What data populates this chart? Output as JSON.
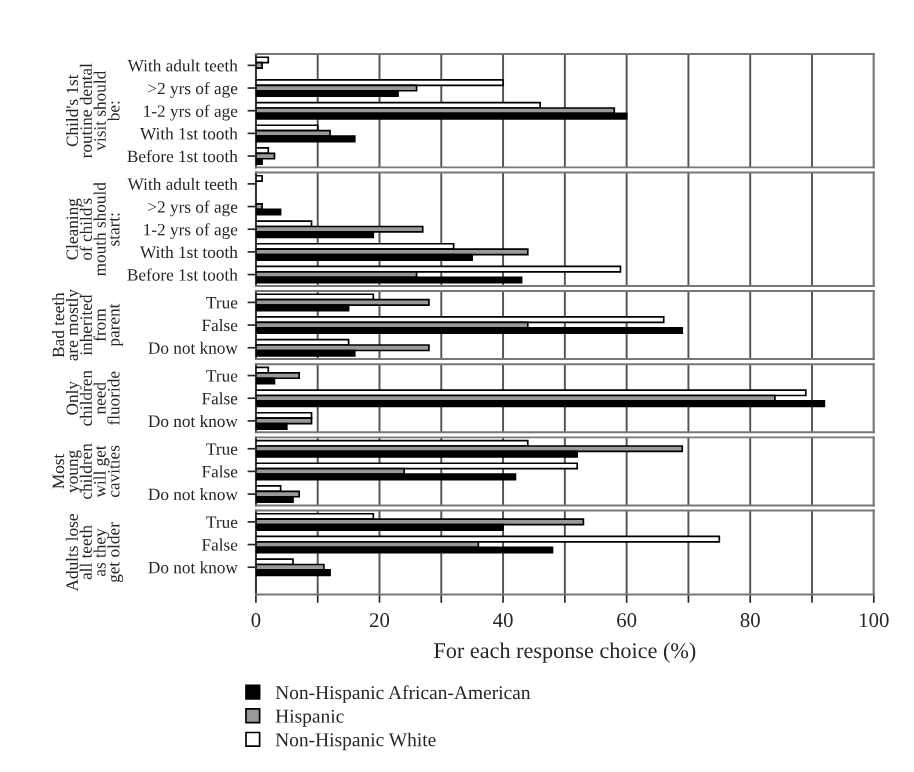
{
  "chart_data": [
    {
      "type": "bar",
      "orientation": "horizontal",
      "ylabel": "Child's 1st\nroutine dental\nvisit should\nbe:",
      "categories": [
        "With adult teeth",
        ">2 yrs of age",
        "1-2 yrs of age",
        "With 1st tooth",
        "Before 1st tooth"
      ],
      "xlim": [
        0,
        100
      ],
      "xticks": [
        0,
        {
          "value": 10,
          "label": null
        },
        20,
        {
          "value": 30,
          "label": null
        },
        40,
        {
          "value": 50,
          "label": null
        },
        60,
        {
          "value": 70,
          "label": null
        },
        80,
        {
          "value": 90,
          "label": null
        },
        100
      ],
      "tick_labels": "y",
      "grid": "x",
      "legend": false,
      "series": [
        {
          "color": "#ffffff",
          "values": [
            2,
            40,
            46,
            10,
            2
          ]
        },
        {
          "color": "#999999",
          "values": [
            1,
            26,
            58,
            12,
            3
          ]
        },
        {
          "color": "#000000",
          "values": [
            0,
            23,
            60,
            16,
            1
          ]
        }
      ]
    },
    {
      "type": "bar",
      "orientation": "horizontal",
      "ylabel": "Cleaning\nof child's\nmouth should\nstart:",
      "categories": [
        "With adult teeth",
        ">2 yrs of age",
        "1-2 yrs of age",
        "With 1st tooth",
        "Before 1st tooth"
      ],
      "xlim": [
        0,
        100
      ],
      "xticks": [
        0,
        {
          "value": 10,
          "label": null
        },
        20,
        {
          "value": 30,
          "label": null
        },
        40,
        {
          "value": 50,
          "label": null
        },
        60,
        {
          "value": 70,
          "label": null
        },
        80,
        {
          "value": 90,
          "label": null
        },
        100
      ],
      "tick_labels": "y",
      "grid": "x",
      "legend": false,
      "series": [
        {
          "color": "#ffffff",
          "values": [
            1,
            0,
            9,
            32,
            59
          ]
        },
        {
          "color": "#999999",
          "values": [
            0,
            1,
            27,
            44,
            26
          ]
        },
        {
          "color": "#000000",
          "values": [
            0,
            4,
            19,
            35,
            43
          ]
        }
      ]
    },
    {
      "type": "bar",
      "orientation": "horizontal",
      "ylabel": "Bad teeth\nare mostly\ninherited\nfrom\nparent",
      "categories": [
        "True",
        "False",
        "Do not know"
      ],
      "xlim": [
        0,
        100
      ],
      "xticks": [
        0,
        {
          "value": 10,
          "label": null
        },
        20,
        {
          "value": 30,
          "label": null
        },
        40,
        {
          "value": 50,
          "label": null
        },
        60,
        {
          "value": 70,
          "label": null
        },
        80,
        {
          "value": 90,
          "label": null
        },
        100
      ],
      "tick_labels": "y",
      "grid": "x",
      "legend": false,
      "series": [
        {
          "color": "#ffffff",
          "values": [
            19,
            66,
            15
          ]
        },
        {
          "color": "#999999",
          "values": [
            28,
            44,
            28
          ]
        },
        {
          "color": "#000000",
          "values": [
            15,
            69,
            16
          ]
        }
      ]
    },
    {
      "type": "bar",
      "orientation": "horizontal",
      "ylabel": "Only\nchildren\nneed\nfluoride",
      "categories": [
        "True",
        "False",
        "Do not know"
      ],
      "xlim": [
        0,
        100
      ],
      "xticks": [
        0,
        {
          "value": 10,
          "label": null
        },
        20,
        {
          "value": 30,
          "label": null
        },
        40,
        {
          "value": 50,
          "label": null
        },
        60,
        {
          "value": 70,
          "label": null
        },
        80,
        {
          "value": 90,
          "label": null
        },
        100
      ],
      "tick_labels": "y",
      "grid": "x",
      "legend": false,
      "series": [
        {
          "color": "#ffffff",
          "values": [
            2,
            89,
            9
          ]
        },
        {
          "color": "#999999",
          "values": [
            7,
            84,
            9
          ]
        },
        {
          "color": "#000000",
          "values": [
            3,
            92,
            5
          ]
        }
      ]
    },
    {
      "type": "bar",
      "orientation": "horizontal",
      "ylabel": "Most\nyoung\nchildren\nwill get\ncavities",
      "categories": [
        "True",
        "False",
        "Do not know"
      ],
      "xlim": [
        0,
        100
      ],
      "xticks": [
        0,
        {
          "value": 10,
          "label": null
        },
        20,
        {
          "value": 30,
          "label": null
        },
        40,
        {
          "value": 50,
          "label": null
        },
        60,
        {
          "value": 70,
          "label": null
        },
        80,
        {
          "value": 90,
          "label": null
        },
        100
      ],
      "tick_labels": "y",
      "grid": "x",
      "legend": false,
      "series": [
        {
          "color": "#ffffff",
          "values": [
            44,
            52,
            4
          ]
        },
        {
          "color": "#999999",
          "values": [
            69,
            24,
            7
          ]
        },
        {
          "color": "#000000",
          "values": [
            52,
            42,
            6
          ]
        }
      ]
    },
    {
      "type": "bar",
      "orientation": "horizontal",
      "ylabel": "Adults lose\nall teeth\nas they\nget older",
      "xlabel": "For each response choice (%)",
      "categories": [
        "True",
        "False",
        "Do not know"
      ],
      "xlim": [
        0,
        100
      ],
      "xticks": [
        0,
        {
          "value": 10,
          "label": null
        },
        20,
        {
          "value": 30,
          "label": null
        },
        40,
        {
          "value": 50,
          "label": null
        },
        60,
        {
          "value": 70,
          "label": null
        },
        80,
        {
          "value": 90,
          "label": null
        },
        100
      ],
      "grid": "x",
      "legend": "bottom",
      "series": [
        {
          "name": "Non-Hispanic White",
          "color": "#ffffff",
          "values": [
            19,
            75,
            6
          ]
        },
        {
          "name": "Hispanic",
          "color": "#999999",
          "values": [
            53,
            36,
            11
          ]
        },
        {
          "name": "Non-Hispanic African-American",
          "color": "#000000",
          "values": [
            40,
            48,
            12
          ]
        }
      ]
    }
  ]
}
